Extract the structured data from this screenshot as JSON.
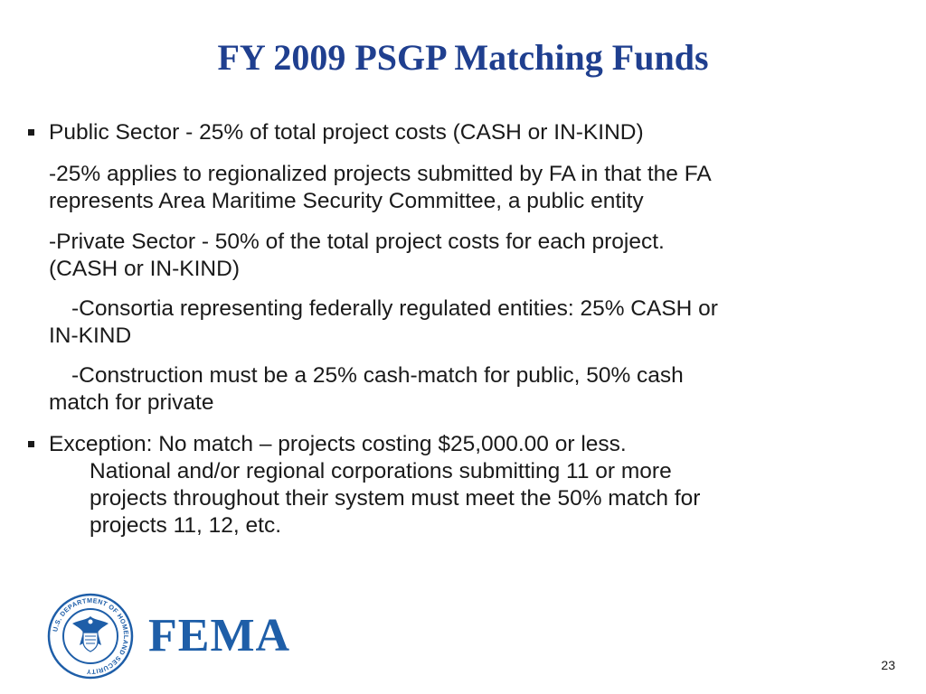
{
  "slide": {
    "title": "FY 2009 PSGP Matching Funds",
    "lines": [
      "Public Sector -  25% of total project costs (CASH or IN-KIND)",
      "-25% applies to regionalized projects submitted by FA in that the FA",
      "represents Area Maritime Security Committee, a public entity",
      "-Private Sector -  50% of the total project costs for each project.",
      "(CASH or IN-KIND)",
      "-Consortia representing federally regulated entities: 25%  CASH or",
      "IN-KIND",
      "-Construction must be a 25% cash-match for public, 50% cash",
      "match for private",
      "Exception:  No match – projects costing $25,000.00 or less.",
      "National and/or regional corporations submitting 11 or more",
      "projects throughout their system must meet the 50% match for",
      "projects 11, 12, etc."
    ]
  },
  "footer": {
    "seal_text": "U.S. DEPARTMENT OF HOMELAND SECURITY",
    "logo_text": "FEMA",
    "page_number": "23"
  },
  "colors": {
    "title": "#1f3f8f",
    "logo": "#1e5ea8",
    "seal_ring": "#1e5ea8"
  }
}
